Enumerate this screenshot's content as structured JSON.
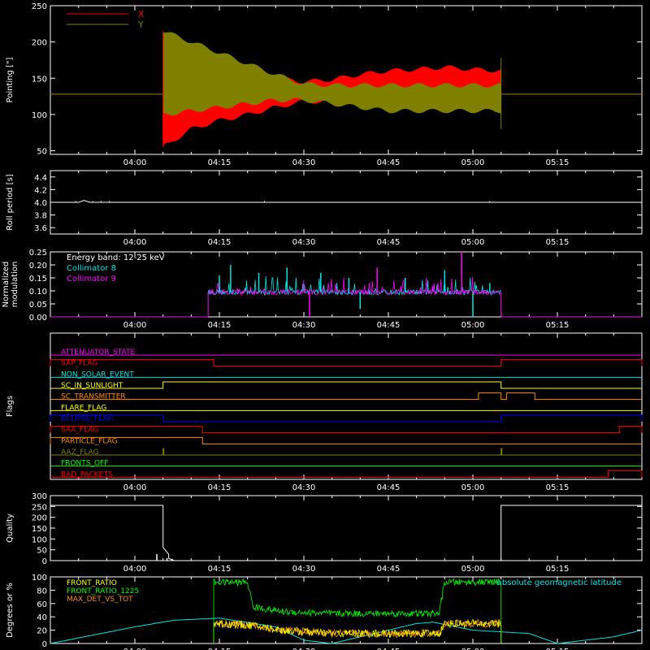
{
  "colors": {
    "background": "#000000",
    "axes": "#ffffff",
    "x_series": "#ff0000",
    "y_series": "#808000",
    "cyan": "#00e5e5",
    "magenta": "#ff00ff",
    "green": "#00ff00",
    "orange": "#ff8c00"
  },
  "time_axis": {
    "start": "03:45",
    "end": "05:30",
    "tick_labels": [
      "04:00",
      "04:15",
      "04:30",
      "04:45",
      "05:00",
      "05:15"
    ]
  },
  "chart_data": [
    {
      "id": "pointing",
      "type": "area",
      "ylabel": "Pointing [\"]",
      "ylim": [
        45,
        250
      ],
      "yticks": [
        50,
        100,
        150,
        200,
        250
      ],
      "legend": {
        "placement": "top-left",
        "entries": [
          {
            "name": "X",
            "color": "#ff0000"
          },
          {
            "name": "Y",
            "color": "#808000"
          }
        ]
      },
      "baseline": 128,
      "active_interval": [
        "04:05",
        "05:05"
      ],
      "envelope_times": [
        "04:05",
        "04:10",
        "04:15",
        "04:20",
        "04:25",
        "04:30",
        "04:35",
        "04:40",
        "04:45",
        "04:50",
        "04:55",
        "05:00",
        "05:05"
      ],
      "series": [
        {
          "name": "X",
          "upper": [
            200,
            185,
            170,
            160,
            150,
            145,
            148,
            155,
            160,
            162,
            165,
            162,
            160
          ],
          "lower": [
            55,
            80,
            92,
            100,
            110,
            118,
            118,
            115,
            112,
            112,
            112,
            112,
            115
          ]
        },
        {
          "name": "Y",
          "upper": [
            215,
            200,
            185,
            170,
            155,
            142,
            140,
            140,
            140,
            140,
            140,
            140,
            140
          ],
          "lower": [
            100,
            105,
            110,
            115,
            120,
            120,
            115,
            110,
            105,
            105,
            105,
            105,
            105
          ]
        }
      ]
    },
    {
      "id": "roll_period",
      "type": "line",
      "ylabel": "Roll period [s]",
      "ylim": [
        3.5,
        4.5
      ],
      "yticks": [
        "3.6",
        "3.8",
        "4.0",
        "4.2",
        "4.4"
      ],
      "series": [
        {
          "name": "",
          "x": [
            "03:45",
            "03:50",
            "03:51",
            "03:52",
            "04:00",
            "05:30"
          ],
          "y": [
            4.0,
            4.0,
            4.03,
            4.0,
            4.0,
            4.0
          ]
        }
      ]
    },
    {
      "id": "modulation",
      "type": "line",
      "ylabel": "Normalized modulation",
      "ylim": [
        0,
        0.25
      ],
      "yticks": [
        "0.00",
        "0.05",
        "0.10",
        "0.15",
        "0.20",
        "0.25"
      ],
      "annotations": [
        "Energy band: 12-25 keV"
      ],
      "legend": {
        "placement": "top-left",
        "entries": [
          {
            "name": "Collimator 8",
            "color": "#00e5e5"
          },
          {
            "name": "Collimator 9",
            "color": "#ff00ff"
          }
        ]
      },
      "active_interval": [
        "04:13",
        "05:05"
      ],
      "typical_level": 0.095,
      "spikes": [
        {
          "t": "04:15",
          "series": "Collimator 8",
          "value": 0.16
        },
        {
          "t": "04:17",
          "series": "Collimator 8",
          "value": 0.2
        },
        {
          "t": "04:22",
          "series": "Collimator 8",
          "value": 0.17
        },
        {
          "t": "04:27",
          "series": "Collimator 8",
          "value": 0.19
        },
        {
          "t": "04:31",
          "series": "Collimator 9",
          "value": 0.0
        },
        {
          "t": "04:33",
          "series": "Collimator 8",
          "value": 0.17
        },
        {
          "t": "04:38",
          "series": "Collimator 8",
          "value": 0.15
        },
        {
          "t": "04:40",
          "series": "Collimator 8",
          "value": 0.03
        },
        {
          "t": "04:43",
          "series": "Collimator 9",
          "value": 0.19
        },
        {
          "t": "04:48",
          "series": "Collimator 8",
          "value": 0.15
        },
        {
          "t": "04:55",
          "series": "Collimator 8",
          "value": 0.18
        },
        {
          "t": "04:58",
          "series": "Collimator 9",
          "value": 0.25
        },
        {
          "t": "05:00",
          "series": "Collimator 8",
          "value": 0.0
        },
        {
          "t": "05:03",
          "series": "Collimator 8",
          "value": 0.13
        }
      ]
    },
    {
      "id": "flags",
      "type": "line",
      "ylabel": "Flags",
      "series": [
        {
          "name": "ATTENUATOR_STATE",
          "color": "#ff00ff",
          "high": []
        },
        {
          "name": "SAP_FLAG",
          "color": "#ff0000",
          "high": [
            [
              "03:45",
              "04:14"
            ],
            [
              "05:05",
              "05:30"
            ]
          ]
        },
        {
          "name": "NON_SOLAR_EVENT",
          "color": "#00e5e5",
          "high": []
        },
        {
          "name": "SC_IN_SUNLIGHT",
          "color": "#ffff00",
          "high": [
            [
              "04:05",
              "05:05"
            ]
          ]
        },
        {
          "name": "SC_TRANSMITTER",
          "color": "#ff8c00",
          "high": [
            [
              "05:01",
              "05:05"
            ],
            [
              "05:06",
              "05:11"
            ]
          ]
        },
        {
          "name": "FLARE_FLAG",
          "color": "#ffff00",
          "high": []
        },
        {
          "name": "ECLIPSE_FLAG",
          "color": "#0000ff",
          "high": [
            [
              "03:45",
              "04:05"
            ],
            [
              "05:05",
              "05:30"
            ]
          ]
        },
        {
          "name": "SAA_FLAG",
          "color": "#ff0000",
          "high": [
            [
              "03:45",
              "04:12"
            ],
            [
              "05:26",
              "05:30"
            ]
          ]
        },
        {
          "name": "PARTICLE_FLAG",
          "color": "#ff8c00",
          "high": [
            [
              "03:45",
              "04:12"
            ]
          ]
        },
        {
          "name": "AAZ_FLAG",
          "color": "#808000",
          "high": [
            [
              "04:05",
              "04:05"
            ],
            [
              "05:05",
              "05:05"
            ]
          ]
        },
        {
          "name": "FRONTS_OFF",
          "color": "#00ff00",
          "high": []
        },
        {
          "name": "BAD_PACKETS",
          "color": "#ff0000",
          "high": [
            [
              "05:24",
              "05:30"
            ]
          ]
        }
      ]
    },
    {
      "id": "quality",
      "type": "line",
      "ylabel": "Quality",
      "ylim": [
        0,
        300
      ],
      "yticks": [
        0,
        50,
        100,
        150,
        200,
        250,
        300
      ],
      "series": [
        {
          "name": "",
          "x": [
            "03:45",
            "04:05",
            "04:05",
            "04:06",
            "04:06",
            "04:07",
            "05:05",
            "05:05",
            "05:30"
          ],
          "y": [
            255,
            255,
            60,
            30,
            10,
            0,
            0,
            255,
            255
          ]
        }
      ]
    },
    {
      "id": "ratios",
      "type": "line",
      "ylabel": "Degrees or %",
      "ylim": [
        0,
        100
      ],
      "yticks": [
        0,
        20,
        40,
        60,
        80,
        100
      ],
      "legend": {
        "placement": "top-left",
        "entries": [
          {
            "name": "FRONT_RATIO",
            "color": "#ffff00"
          },
          {
            "name": "FRONT_RATIO_1225",
            "color": "#00ff00"
          },
          {
            "name": "MAX_DET_VS_TOT",
            "color": "#ff8c00"
          }
        ]
      },
      "annotations": [
        "absolute geomagnetic latitude"
      ],
      "series": [
        {
          "name": "FRONT_RATIO_1225",
          "x": [
            "04:14",
            "04:20",
            "04:21",
            "04:26",
            "04:35",
            "04:45",
            "04:54",
            "04:55",
            "05:05"
          ],
          "y": [
            92,
            92,
            55,
            48,
            45,
            45,
            45,
            92,
            92
          ]
        },
        {
          "name": "MAX_DET_VS_TOT",
          "x": [
            "04:14",
            "04:20",
            "04:26",
            "04:35",
            "04:45",
            "04:54",
            "04:55",
            "05:05"
          ],
          "y": [
            30,
            28,
            20,
            15,
            15,
            15,
            30,
            30
          ]
        },
        {
          "name": "FRONT_RATIO",
          "x": [
            "04:14",
            "04:20",
            "04:26",
            "04:35",
            "04:45",
            "04:54",
            "04:55",
            "05:05"
          ],
          "y": [
            30,
            28,
            20,
            15,
            15,
            15,
            30,
            30
          ]
        },
        {
          "name": "absolute geomagnetic latitude",
          "x": [
            "03:45",
            "04:00",
            "04:07",
            "04:15",
            "04:25",
            "04:30",
            "04:35",
            "04:50",
            "04:53",
            "05:00",
            "05:10",
            "05:15",
            "05:25",
            "05:30"
          ],
          "y": [
            0,
            25,
            35,
            38,
            25,
            5,
            0,
            30,
            32,
            20,
            15,
            0,
            10,
            20
          ]
        }
      ]
    }
  ]
}
